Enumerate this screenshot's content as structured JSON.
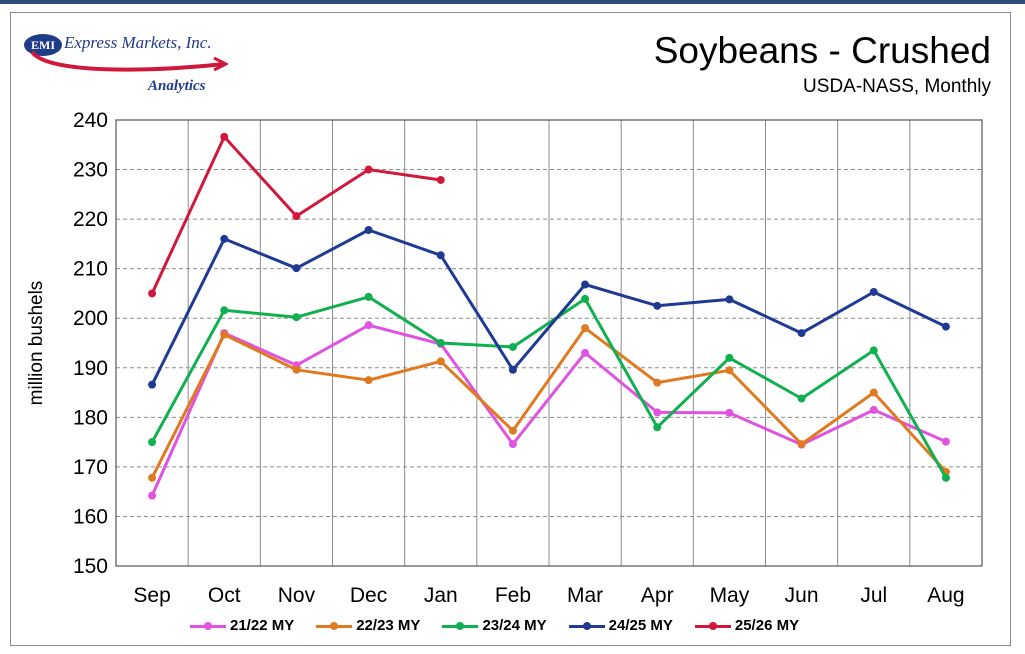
{
  "logo": {
    "badge": "EMI",
    "name": "Express Markets, Inc.",
    "sub": "Analytics"
  },
  "chart_data": {
    "type": "line",
    "title": "Soybeans - Crushed",
    "subtitle": "USDA-NASS, Monthly",
    "xlabel": "",
    "ylabel": "million bushels",
    "ylim": [
      150,
      240
    ],
    "yticks": [
      "150",
      "160",
      "170",
      "180",
      "190",
      "200",
      "210",
      "220",
      "230",
      "240"
    ],
    "categories": [
      "Sep",
      "Oct",
      "Nov",
      "Dec",
      "Jan",
      "Feb",
      "Mar",
      "Apr",
      "May",
      "Jun",
      "Jul",
      "Aug"
    ],
    "grid": true,
    "legend_position": "bottom",
    "series": [
      {
        "name": "21/22 MY",
        "color": "#e052e0",
        "values": [
          164.2,
          197.0,
          190.5,
          198.6,
          194.8,
          174.6,
          193.0,
          181.0,
          180.9,
          174.5,
          181.5,
          175.1
        ]
      },
      {
        "name": "22/23 MY",
        "color": "#e07a20",
        "values": [
          167.8,
          196.7,
          189.6,
          187.5,
          191.3,
          177.3,
          198.0,
          187.0,
          189.5,
          174.6,
          185.0,
          169.0
        ]
      },
      {
        "name": "23/24 MY",
        "color": "#10b050",
        "values": [
          175.0,
          201.6,
          200.2,
          204.3,
          195.0,
          194.2,
          203.9,
          178.0,
          192.0,
          183.8,
          193.5,
          167.8
        ]
      },
      {
        "name": "24/25 MY",
        "color": "#1f3a93",
        "values": [
          186.6,
          216.0,
          210.1,
          217.8,
          212.7,
          189.6,
          206.8,
          202.5,
          203.8,
          197.0,
          205.3,
          198.3
        ]
      },
      {
        "name": "25/26 MY",
        "color": "#d0183c",
        "values": [
          205.0,
          236.6,
          220.6,
          230.0,
          227.9,
          null,
          null,
          null,
          null,
          null,
          null,
          null
        ]
      }
    ]
  }
}
